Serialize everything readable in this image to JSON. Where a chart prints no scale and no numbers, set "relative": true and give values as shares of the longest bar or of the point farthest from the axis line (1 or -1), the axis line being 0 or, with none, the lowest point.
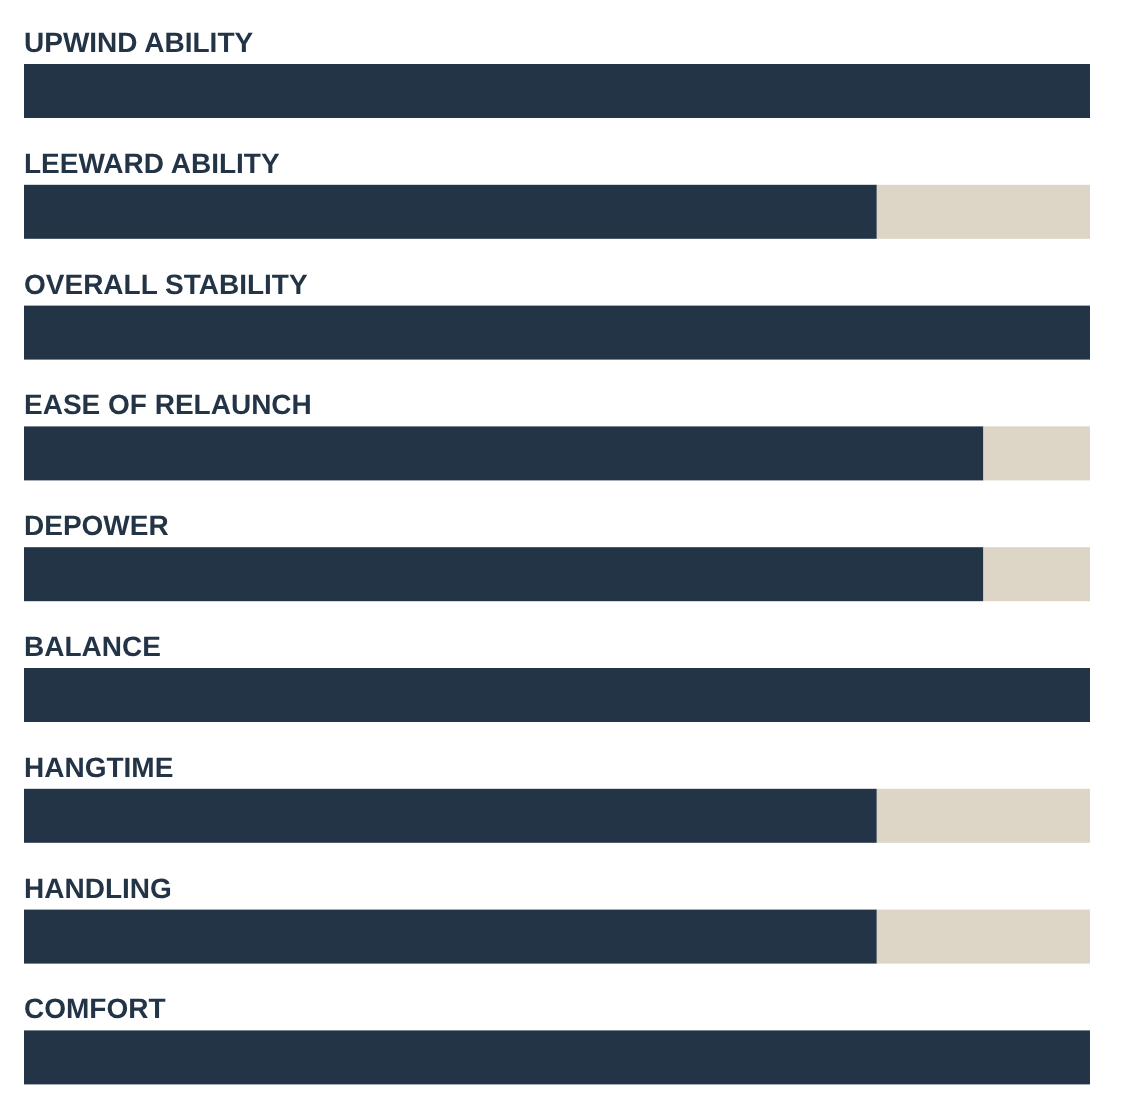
{
  "chart_data": {
    "type": "bar",
    "orientation": "horizontal",
    "stacked": true,
    "relative": true,
    "categories": [
      "UPWIND ABILITY",
      "LEEWARD ABILITY",
      "OVERALL STABILITY",
      "EASE OF RELAUNCH",
      "DEPOWER",
      "BALANCE",
      "HANGTIME",
      "HANDLING",
      "COMFORT"
    ],
    "series": [
      {
        "color": "#243447",
        "values": [
          1,
          0.8,
          1,
          0.9,
          0.9,
          1,
          0.8,
          0.8,
          1
        ]
      },
      {
        "color": "#ddd5c5",
        "values": [
          0,
          0.2,
          0,
          0.1,
          0.1,
          0,
          0.2,
          0.2,
          0
        ]
      }
    ]
  }
}
